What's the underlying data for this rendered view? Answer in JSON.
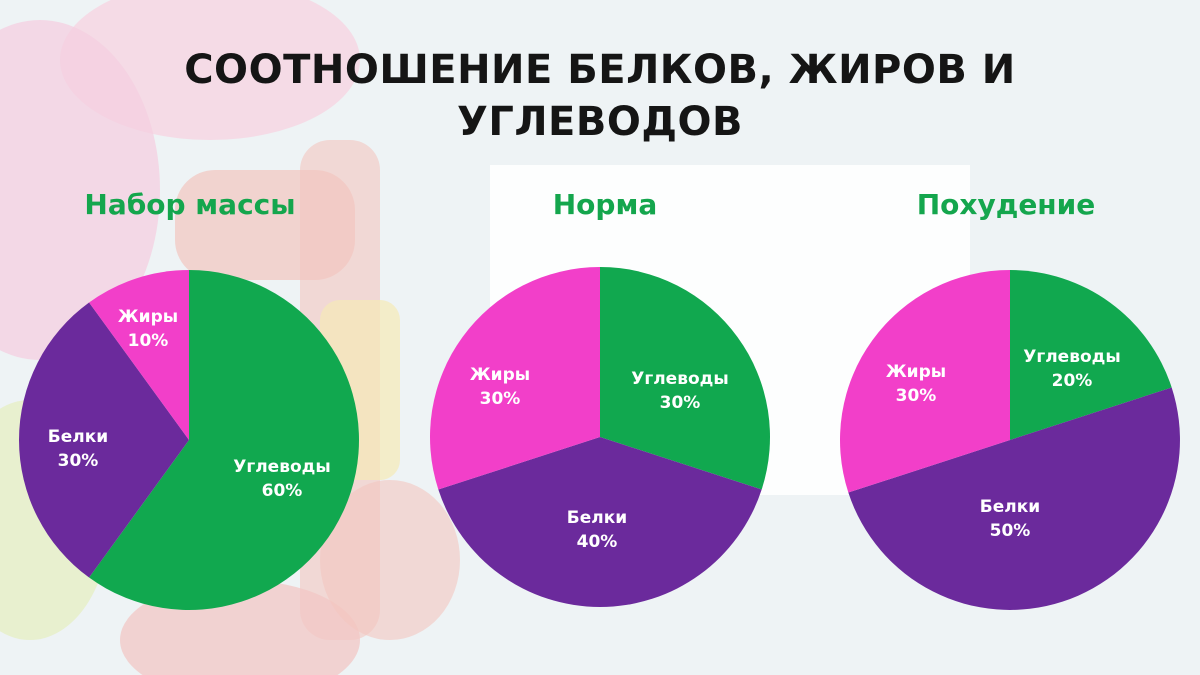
{
  "title_lines": [
    "СООТНОШЕНИЕ БЕЛКОВ, ЖИРОВ И",
    "УГЛЕВОДОВ"
  ],
  "colors": {
    "carbs": "#11a84f",
    "protein": "#6b2a9c",
    "fats": "#f23fc9",
    "heading": "#14a64d"
  },
  "chart_data": [
    {
      "type": "pie",
      "title": "Набор массы",
      "slices": [
        {
          "label": "Углеводы",
          "value": 60,
          "display": "60%",
          "color": "#11a84f"
        },
        {
          "label": "Белки",
          "value": 30,
          "display": "30%",
          "color": "#6b2a9c"
        },
        {
          "label": "Жиры",
          "value": 10,
          "display": "10%",
          "color": "#f23fc9"
        }
      ]
    },
    {
      "type": "pie",
      "title": "Норма",
      "slices": [
        {
          "label": "Углеводы",
          "value": 30,
          "display": "30%",
          "color": "#11a84f"
        },
        {
          "label": "Белки",
          "value": 40,
          "display": "40%",
          "color": "#6b2a9c"
        },
        {
          "label": "Жиры",
          "value": 30,
          "display": "30%",
          "color": "#f23fc9"
        }
      ]
    },
    {
      "type": "pie",
      "title": "Похудение",
      "slices": [
        {
          "label": "Углеводы",
          "value": 20,
          "display": "20%",
          "color": "#11a84f"
        },
        {
          "label": "Белки",
          "value": 50,
          "display": "50%",
          "color": "#6b2a9c"
        },
        {
          "label": "Жиры",
          "value": 30,
          "display": "30%",
          "color": "#f23fc9"
        }
      ]
    }
  ]
}
